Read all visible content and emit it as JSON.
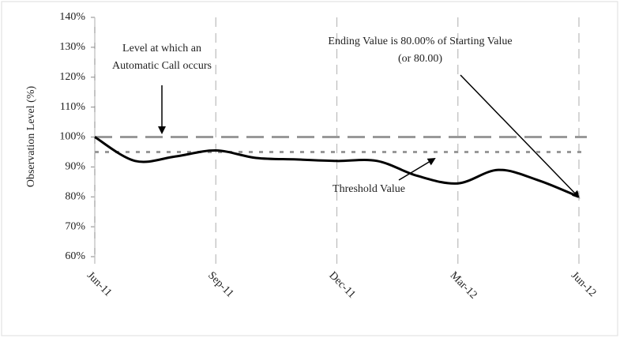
{
  "chart_data": {
    "type": "line",
    "y_label": "Observation Level (%)",
    "categories": [
      "Jun-11",
      null,
      null,
      "Sep-11",
      null,
      null,
      "Dec-11",
      null,
      null,
      "Mar-12",
      null,
      null,
      "Jun-12"
    ],
    "series": [
      {
        "name": "Observation Level",
        "color": "#000000",
        "values": [
          100,
          92,
          93.5,
          95.5,
          93,
          92.5,
          92,
          92,
          87,
          84.5,
          89,
          85.5,
          80
        ]
      }
    ],
    "ylim": [
      60,
      140
    ],
    "yticks": [
      {
        "value": 60,
        "label": "60%"
      },
      {
        "value": 70,
        "label": "70%"
      },
      {
        "value": 80,
        "label": "80%"
      },
      {
        "value": 90,
        "label": "90%"
      },
      {
        "value": 100,
        "label": "100%"
      },
      {
        "value": 110,
        "label": "110%"
      },
      {
        "value": 120,
        "label": "120%"
      },
      {
        "value": 130,
        "label": "130%"
      },
      {
        "value": 140,
        "label": "140%"
      }
    ],
    "reference_lines": [
      {
        "value": 100,
        "color": "#999999",
        "style": "dashed"
      },
      {
        "value": 95,
        "color": "#999999",
        "style": "dotted"
      }
    ],
    "annotations": [
      {
        "lines": [
          "Level at which an",
          "Automatic Call occurs"
        ]
      },
      {
        "lines": [
          "Ending Value is 80.00% of Starting Value",
          "(or 80.00)"
        ]
      },
      {
        "lines": [
          "Threshold Value"
        ]
      }
    ],
    "grid": true
  }
}
